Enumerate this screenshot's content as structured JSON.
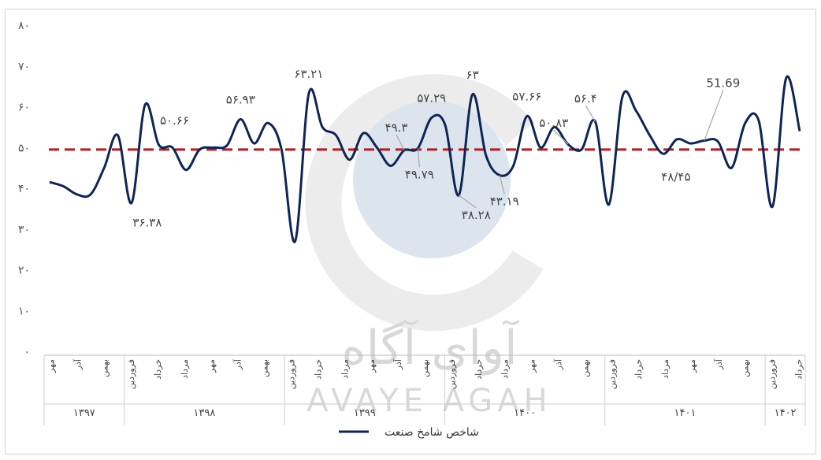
{
  "chart_data": {
    "type": "line",
    "title": "",
    "ylabel": "",
    "xlabel": "",
    "ylim": [
      0,
      80
    ],
    "yticks": [
      "۰",
      "۱۰",
      "۲۰",
      "۳۰",
      "۴۰",
      "۵۰",
      "۶۰",
      "۷۰",
      "۸۰"
    ],
    "grid": false,
    "legend": {
      "position": "bottom",
      "label": "شاخص شامخ صنعت",
      "color": "#0f2556"
    },
    "reference_line": {
      "value": 49.5,
      "color": "#b01e23",
      "style": "dashed"
    },
    "x_month_labels": [
      "مهر",
      "آذر",
      "بهمن",
      "فروردین",
      "خرداد",
      "مرداد",
      "مهر",
      "آذر",
      "بهمن",
      "فروردین",
      "خرداد",
      "مرداد",
      "مهر",
      "آذر",
      "بهمن",
      "فروردین",
      "خرداد",
      "مرداد",
      "مهر",
      "آذر",
      "بهمن",
      "فروردین",
      "خرداد",
      "مرداد",
      "مهر",
      "آذر",
      "بهمن",
      "فروردین",
      "خرداد"
    ],
    "year_groups": [
      {
        "label": "۱۳۹۷",
        "months": 6
      },
      {
        "label": "۱۳۹۸",
        "months": 12
      },
      {
        "label": "۱۳۹۹",
        "months": 12
      },
      {
        "label": "۱۴۰۰",
        "months": 12
      },
      {
        "label": "۱۴۰۱",
        "months": 12
      },
      {
        "label": "۱۴۰۲",
        "months": 3
      }
    ],
    "series": [
      {
        "name": "شاخص شامخ صنعت",
        "color": "#0f2556",
        "values": [
          41.5,
          40.5,
          38.5,
          38.5,
          45,
          53,
          36.38,
          60.5,
          50.66,
          50,
          44.5,
          49.5,
          50,
          50.5,
          56.93,
          51,
          56,
          49.5,
          27,
          63.21,
          55,
          53,
          47,
          53.5,
          50,
          45.5,
          49.3,
          49.79,
          57.29,
          55.5,
          38.28,
          63,
          48,
          43.19,
          45.5,
          57.66,
          50,
          55,
          50.83,
          49.5,
          56.4,
          36,
          62.5,
          59,
          53,
          48.45,
          52,
          51,
          51.69,
          51.5,
          45,
          56,
          56.5,
          35.5,
          67,
          54
        ]
      }
    ],
    "data_labels": [
      {
        "index": 6,
        "text": "۳۶.۳۸"
      },
      {
        "index": 8,
        "text": "۵۰.۶۶"
      },
      {
        "index": 14,
        "text": "۵۶.۹۳"
      },
      {
        "index": 19,
        "text": "۶۳.۲۱"
      },
      {
        "index": 26,
        "text": "۴۹.۳"
      },
      {
        "index": 27,
        "text": "۴۹.۷۹"
      },
      {
        "index": 28,
        "text": "۵۷.۲۹"
      },
      {
        "index": 30,
        "text": "۳۸.۲۸"
      },
      {
        "index": 31,
        "text": "۶۳"
      },
      {
        "index": 33,
        "text": "۴۳.۱۹"
      },
      {
        "index": 35,
        "text": "۵۷.۶۶"
      },
      {
        "index": 38,
        "text": "۵۰.۸۳"
      },
      {
        "index": 40,
        "text": "۵۶.۴"
      },
      {
        "index": 45,
        "text": "۴۸/۴۵"
      },
      {
        "index": 48,
        "text": "51.69"
      }
    ]
  },
  "watermark": {
    "persian": "آوای آگاه",
    "latin": "AVAYE AGAH"
  }
}
